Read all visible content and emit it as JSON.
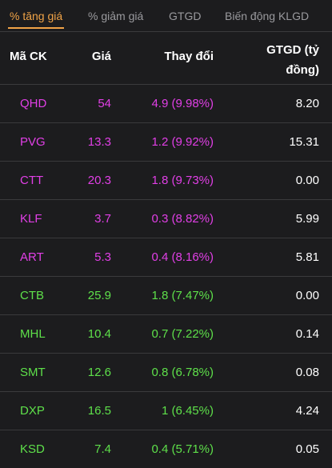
{
  "tabs": [
    {
      "label": "% tăng giá",
      "active": true
    },
    {
      "label": "% giảm giá",
      "active": false
    },
    {
      "label": "GTGD",
      "active": false
    },
    {
      "label": "Biến động KLGD",
      "active": false
    }
  ],
  "header": {
    "symbol": "Mã CK",
    "price": "Giá",
    "change": "Thay đổi",
    "volume_line1": "GTGD (tỷ",
    "volume_line2": "đồng)"
  },
  "colors": {
    "ceiling": "#e13fe6",
    "up": "#5ee04a",
    "accent": "#f0a347"
  },
  "rows": [
    {
      "symbol": "QHD",
      "price": "54",
      "change": "4.9 (9.98%)",
      "volume": "8.20",
      "status": "ceiling"
    },
    {
      "symbol": "PVG",
      "price": "13.3",
      "change": "1.2 (9.92%)",
      "volume": "15.31",
      "status": "ceiling"
    },
    {
      "symbol": "CTT",
      "price": "20.3",
      "change": "1.8 (9.73%)",
      "volume": "0.00",
      "status": "ceiling"
    },
    {
      "symbol": "KLF",
      "price": "3.7",
      "change": "0.3 (8.82%)",
      "volume": "5.99",
      "status": "ceiling"
    },
    {
      "symbol": "ART",
      "price": "5.3",
      "change": "0.4 (8.16%)",
      "volume": "5.81",
      "status": "ceiling"
    },
    {
      "symbol": "CTB",
      "price": "25.9",
      "change": "1.8 (7.47%)",
      "volume": "0.00",
      "status": "up"
    },
    {
      "symbol": "MHL",
      "price": "10.4",
      "change": "0.7 (7.22%)",
      "volume": "0.14",
      "status": "up"
    },
    {
      "symbol": "SMT",
      "price": "12.6",
      "change": "0.8 (6.78%)",
      "volume": "0.08",
      "status": "up"
    },
    {
      "symbol": "DXP",
      "price": "16.5",
      "change": "1 (6.45%)",
      "volume": "4.24",
      "status": "up"
    },
    {
      "symbol": "KSD",
      "price": "7.4",
      "change": "0.4 (5.71%)",
      "volume": "0.05",
      "status": "up"
    }
  ]
}
